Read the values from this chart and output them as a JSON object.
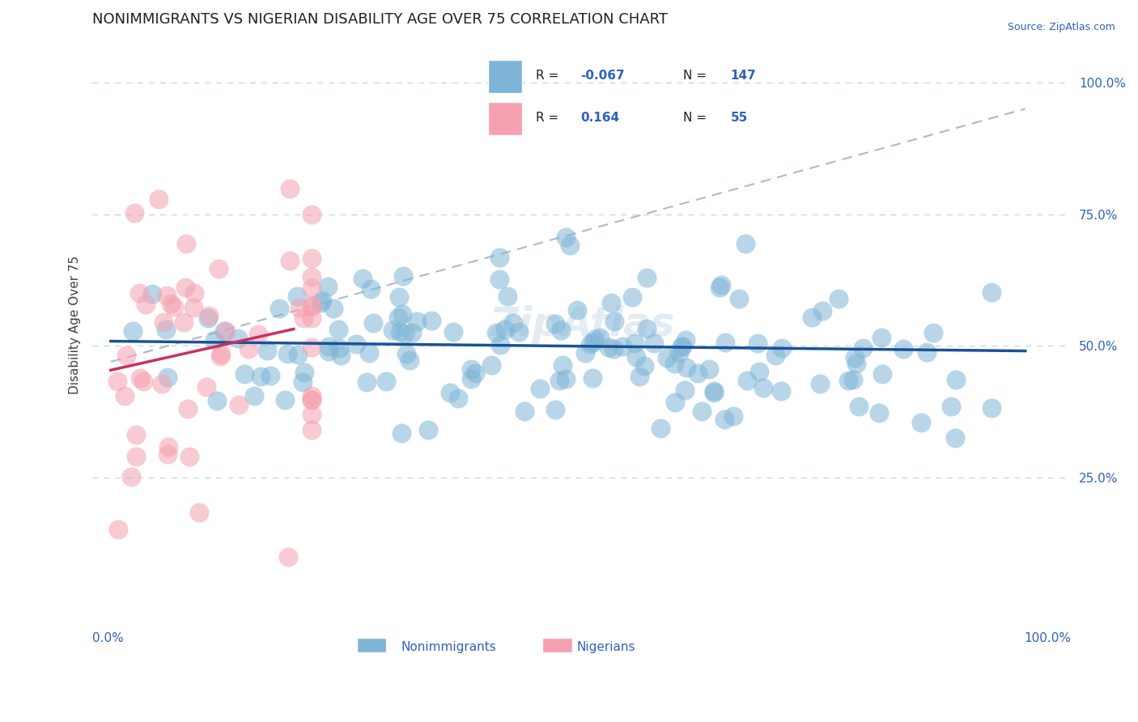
{
  "title": "NONIMMIGRANTS VS NIGERIAN DISABILITY AGE OVER 75 CORRELATION CHART",
  "source_text": "Source: ZipAtlas.com",
  "ylabel": "Disability Age Over 75",
  "blue_R": -0.067,
  "blue_N": 147,
  "pink_R": 0.164,
  "pink_N": 55,
  "blue_color": "#7EB5D6",
  "pink_color": "#F4A0B0",
  "blue_line_color": "#1A5296",
  "pink_line_color": "#C83060",
  "diag_line_color": "#B0B8C8",
  "text_color": "#3060C0",
  "grid_color": "#C8D8E8",
  "background_color": "#FFFFFF",
  "title_fontsize": 13,
  "label_fontsize": 11,
  "tick_fontsize": 11
}
